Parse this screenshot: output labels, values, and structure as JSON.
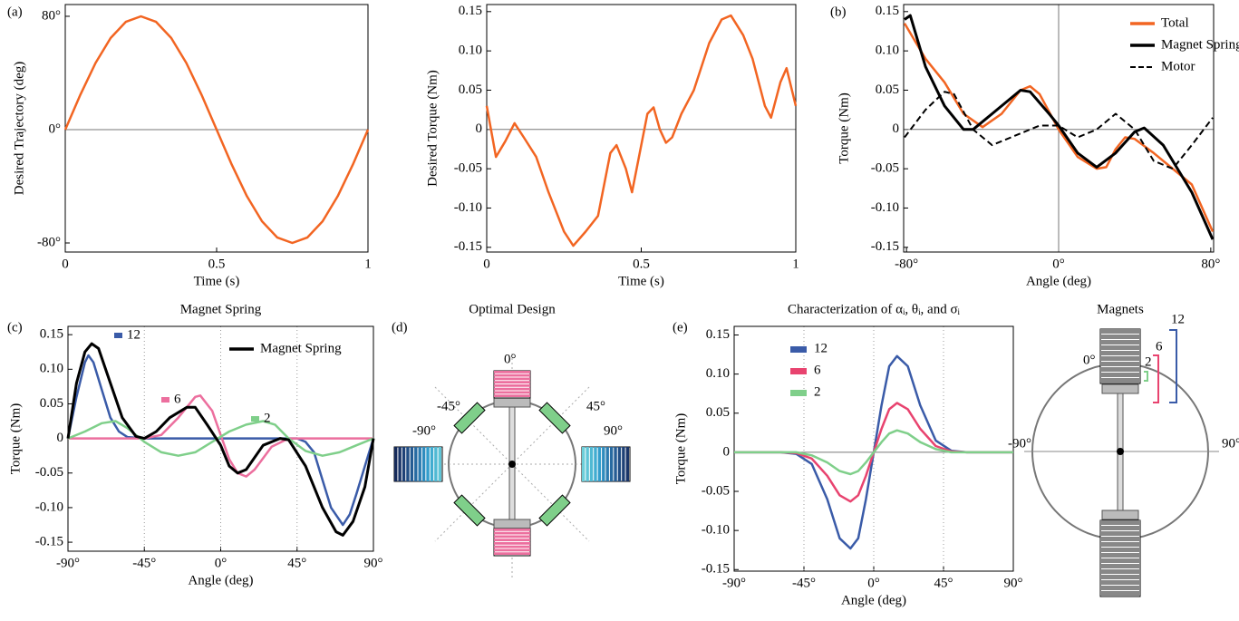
{
  "chart_data": [
    {
      "type": "line",
      "panel_label": "(a)",
      "xlabel": "Time (s)",
      "ylabel": "Desired Trajectory (deg)",
      "xlim": [
        0,
        1
      ],
      "ylim": [
        -86.4,
        88.3
      ],
      "xticks": [
        0,
        0.5,
        1
      ],
      "yticks": [
        {
          "value": -80,
          "label": "-80°"
        },
        {
          "value": 0,
          "label": "0°"
        },
        {
          "value": 80,
          "label": "80°"
        }
      ],
      "zero_hline": true,
      "series": [
        {
          "color": "#f26522",
          "x": [
            0,
            0.05,
            0.1,
            0.15,
            0.2,
            0.25,
            0.3,
            0.35,
            0.4,
            0.45,
            0.5,
            0.55,
            0.6,
            0.65,
            0.7,
            0.75,
            0.8,
            0.85,
            0.9,
            0.95,
            1
          ],
          "values": [
            0,
            24.7,
            47,
            64.7,
            76.1,
            80,
            76.1,
            64.7,
            47,
            24.7,
            0,
            -24.7,
            -47,
            -64.7,
            -76.1,
            -80,
            -76.1,
            -64.7,
            -47,
            -24.7,
            0
          ]
        }
      ]
    },
    {
      "type": "line",
      "xlabel": "Time (s)",
      "ylabel": "Desired Torque (Nm)",
      "xlim": [
        0,
        1
      ],
      "ylim": [
        -0.156,
        0.159
      ],
      "xticks": [
        0,
        0.5,
        1
      ],
      "yticks": [
        -0.15,
        {
          "value": -0.1,
          "label": "-0.10"
        },
        -0.05,
        0,
        0.05,
        {
          "value": 0.1,
          "label": "0.10"
        },
        0.15
      ],
      "zero_hline": true,
      "series": [
        {
          "color": "#f26522",
          "x": [
            0,
            0.03,
            0.06,
            0.09,
            0.12,
            0.16,
            0.2,
            0.25,
            0.28,
            0.32,
            0.36,
            0.4,
            0.42,
            0.45,
            0.47,
            0.5,
            0.52,
            0.54,
            0.56,
            0.58,
            0.6,
            0.63,
            0.67,
            0.72,
            0.76,
            0.79,
            0.83,
            0.86,
            0.9,
            0.92,
            0.95,
            0.97,
            1
          ],
          "values": [
            0.03,
            -0.035,
            -0.015,
            0.008,
            -0.01,
            -0.035,
            -0.08,
            -0.13,
            -0.148,
            -0.13,
            -0.11,
            -0.03,
            -0.02,
            -0.05,
            -0.08,
            -0.02,
            0.02,
            0.028,
            0,
            -0.017,
            -0.01,
            0.02,
            0.05,
            0.11,
            0.14,
            0.145,
            0.12,
            0.09,
            0.03,
            0.015,
            0.06,
            0.078,
            0.03
          ]
        }
      ]
    },
    {
      "type": "line",
      "panel_label": "(b)",
      "xlabel": "Angle (deg)",
      "ylabel": "Torque (Nm)",
      "xlim": [
        -81.5,
        81.5
      ],
      "ylim": [
        -0.156,
        0.159
      ],
      "xticks": [
        {
          "value": -80,
          "label": "-80°"
        },
        {
          "value": 0,
          "label": "0°"
        },
        {
          "value": 80,
          "label": "80°"
        }
      ],
      "yticks": [
        -0.15,
        {
          "value": -0.1,
          "label": "-0.10"
        },
        -0.05,
        0,
        0.05,
        {
          "value": 0.1,
          "label": "0.10"
        },
        0.15
      ],
      "zero_hline": true,
      "zero_vline": true,
      "legend": "top-right",
      "series": [
        {
          "name": "Total",
          "color": "#f26522",
          "x": [
            -81,
            -70,
            -60,
            -50,
            -40,
            -30,
            -20,
            -15,
            -10,
            0,
            10,
            20,
            25,
            30,
            35,
            40,
            50,
            60,
            70,
            81
          ],
          "values": [
            0.135,
            0.09,
            0.06,
            0.02,
            0.003,
            0.02,
            0.05,
            0.055,
            0.045,
            0,
            -0.035,
            -0.05,
            -0.048,
            -0.025,
            -0.01,
            -0.012,
            -0.03,
            -0.05,
            -0.07,
            -0.13
          ]
        },
        {
          "name": "Magnet Spring",
          "color": "#000000",
          "x": [
            -81,
            -78,
            -70,
            -60,
            -50,
            -45,
            -35,
            -20,
            -15,
            -5,
            0,
            10,
            20,
            30,
            40,
            45,
            55,
            70,
            81
          ],
          "values": [
            0.14,
            0.145,
            0.08,
            0.03,
            0,
            0,
            0.02,
            0.05,
            0.048,
            0.02,
            0.005,
            -0.03,
            -0.048,
            -0.03,
            -0.003,
            0.002,
            -0.02,
            -0.08,
            -0.14
          ]
        },
        {
          "name": "Motor",
          "color": "#000000",
          "dashed": true,
          "x": [
            -81,
            -70,
            -60,
            -55,
            -45,
            -35,
            -25,
            -10,
            0,
            10,
            20,
            30,
            40,
            50,
            60,
            70,
            81
          ],
          "values": [
            -0.01,
            0.025,
            0.048,
            0.045,
            0,
            -0.02,
            -0.01,
            0.005,
            0.005,
            -0.01,
            0,
            0.02,
            0,
            -0.04,
            -0.05,
            -0.02,
            0.015
          ]
        }
      ]
    },
    {
      "type": "line",
      "panel_label": "(c)",
      "title": "Magnet Spring",
      "xlabel": "Angle (deg)",
      "ylabel": "Torque (Nm)",
      "xlim": [
        -90,
        90
      ],
      "ylim": [
        -0.163,
        0.162
      ],
      "xticks": [
        {
          "value": -90,
          "label": "-90°"
        },
        {
          "value": -45,
          "label": "-45°"
        },
        {
          "value": 0,
          "label": "0°"
        },
        {
          "value": 45,
          "label": "45°"
        },
        {
          "value": 90,
          "label": "90°"
        }
      ],
      "yticks": [
        -0.15,
        {
          "value": -0.1,
          "label": "-0.10"
        },
        -0.05,
        0,
        0.05,
        {
          "value": 0.1,
          "label": "0.10"
        },
        0.15
      ],
      "grid_x": true,
      "legend": "top-right",
      "series": [
        {
          "name": "12",
          "inline_label": true,
          "color": "#3a5ba8",
          "x": [
            -90,
            -85,
            -80,
            -78,
            -75,
            -70,
            -65,
            -60,
            -55,
            -45,
            0,
            45,
            50,
            55,
            60,
            65,
            72,
            76,
            80,
            85,
            90
          ],
          "values": [
            0,
            0.06,
            0.11,
            0.12,
            0.11,
            0.07,
            0.03,
            0.01,
            0.002,
            0,
            0,
            0,
            -0.005,
            -0.02,
            -0.06,
            -0.1,
            -0.125,
            -0.11,
            -0.08,
            -0.04,
            0
          ]
        },
        {
          "name": "6",
          "inline_label": true,
          "color": "#ec6f9e",
          "x": [
            -90,
            -45,
            -35,
            -25,
            -15,
            -12,
            -5,
            0,
            5,
            10,
            15,
            20,
            30,
            40,
            90
          ],
          "values": [
            0,
            0,
            0.005,
            0.03,
            0.06,
            0.062,
            0.04,
            0.005,
            -0.03,
            -0.05,
            -0.055,
            -0.045,
            -0.012,
            0,
            0
          ]
        },
        {
          "name": "2",
          "inline_label": true,
          "color": "#7fcf8a",
          "x": [
            -90,
            -80,
            -70,
            -62,
            -55,
            -45,
            -35,
            -25,
            -15,
            -5,
            5,
            15,
            25,
            32,
            40,
            50,
            60,
            70,
            80,
            90
          ],
          "values": [
            0,
            0.01,
            0.022,
            0.025,
            0.015,
            -0.005,
            -0.02,
            -0.025,
            -0.02,
            -0.005,
            0.01,
            0.02,
            0.025,
            0.02,
            0,
            -0.018,
            -0.025,
            -0.02,
            -0.01,
            0
          ]
        },
        {
          "name": "Magnet Spring",
          "color": "#000000",
          "x": [
            -90,
            -85,
            -80,
            -76,
            -72,
            -65,
            -58,
            -50,
            -45,
            -38,
            -30,
            -20,
            -15,
            -8,
            0,
            5,
            10,
            15,
            25,
            35,
            40,
            50,
            60,
            68,
            72,
            78,
            85,
            90
          ],
          "values": [
            0,
            0.08,
            0.125,
            0.137,
            0.13,
            0.08,
            0.03,
            0.003,
            0,
            0.01,
            0.03,
            0.045,
            0.045,
            0.02,
            -0.01,
            -0.04,
            -0.05,
            -0.045,
            -0.01,
            0,
            -0.002,
            -0.04,
            -0.1,
            -0.135,
            -0.14,
            -0.12,
            -0.07,
            0
          ]
        }
      ]
    },
    {
      "type": "line",
      "panel_label": "(e)",
      "title": "Characterization of αᵢ, θᵢ, and σᵢ",
      "xlabel": "Angle (deg)",
      "ylabel": "Torque (Nm)",
      "xlim": [
        -90,
        90
      ],
      "ylim": [
        -0.152,
        0.161
      ],
      "xticks": [
        {
          "value": -90,
          "label": "-90°"
        },
        {
          "value": -45,
          "label": "-45°"
        },
        {
          "value": 0,
          "label": "0°"
        },
        {
          "value": 45,
          "label": "45°"
        },
        {
          "value": 90,
          "label": "90°"
        }
      ],
      "yticks": [
        -0.15,
        {
          "value": -0.1,
          "label": "-0.10"
        },
        -0.05,
        0,
        0.05,
        {
          "value": 0.1,
          "label": "0.10"
        },
        0.15
      ],
      "grid_x": true,
      "zero_hline": true,
      "legend": "top-left",
      "series": [
        {
          "name": "12",
          "color": "#3a5ba8",
          "x": [
            -90,
            -60,
            -50,
            -40,
            -30,
            -22,
            -15,
            -10,
            -5,
            0,
            5,
            10,
            15,
            22,
            30,
            40,
            50,
            60,
            90
          ],
          "values": [
            0,
            0,
            -0.002,
            -0.015,
            -0.06,
            -0.11,
            -0.123,
            -0.11,
            -0.06,
            0,
            0.06,
            0.11,
            0.123,
            0.11,
            0.06,
            0.015,
            0.002,
            0,
            0
          ]
        },
        {
          "name": "6",
          "color": "#e8436f",
          "x": [
            -90,
            -60,
            -50,
            -40,
            -30,
            -22,
            -15,
            -10,
            -5,
            0,
            5,
            10,
            15,
            22,
            30,
            40,
            50,
            60,
            90
          ],
          "values": [
            0,
            0,
            -0.001,
            -0.008,
            -0.03,
            -0.055,
            -0.063,
            -0.055,
            -0.03,
            0,
            0.03,
            0.055,
            0.063,
            0.055,
            0.03,
            0.008,
            0.001,
            0,
            0
          ]
        },
        {
          "name": "2",
          "color": "#7fcf8a",
          "x": [
            -90,
            -60,
            -50,
            -40,
            -30,
            -22,
            -15,
            -10,
            -5,
            0,
            5,
            10,
            15,
            22,
            30,
            40,
            50,
            60,
            90
          ],
          "values": [
            0,
            0,
            0,
            -0.004,
            -0.013,
            -0.024,
            -0.028,
            -0.024,
            -0.013,
            0,
            0.013,
            0.024,
            0.028,
            0.024,
            0.013,
            0.004,
            0,
            0,
            0
          ]
        }
      ]
    }
  ],
  "design": {
    "panel_label": "(d)",
    "title": "Optimal Design",
    "labels": [
      "0°",
      "45°",
      "90°",
      "-45°",
      "-90°"
    ]
  },
  "magnets": {
    "title": "Magnets",
    "labels": [
      "0°",
      "90°",
      "-90°"
    ],
    "sizes": [
      "12",
      "6",
      "2"
    ]
  }
}
